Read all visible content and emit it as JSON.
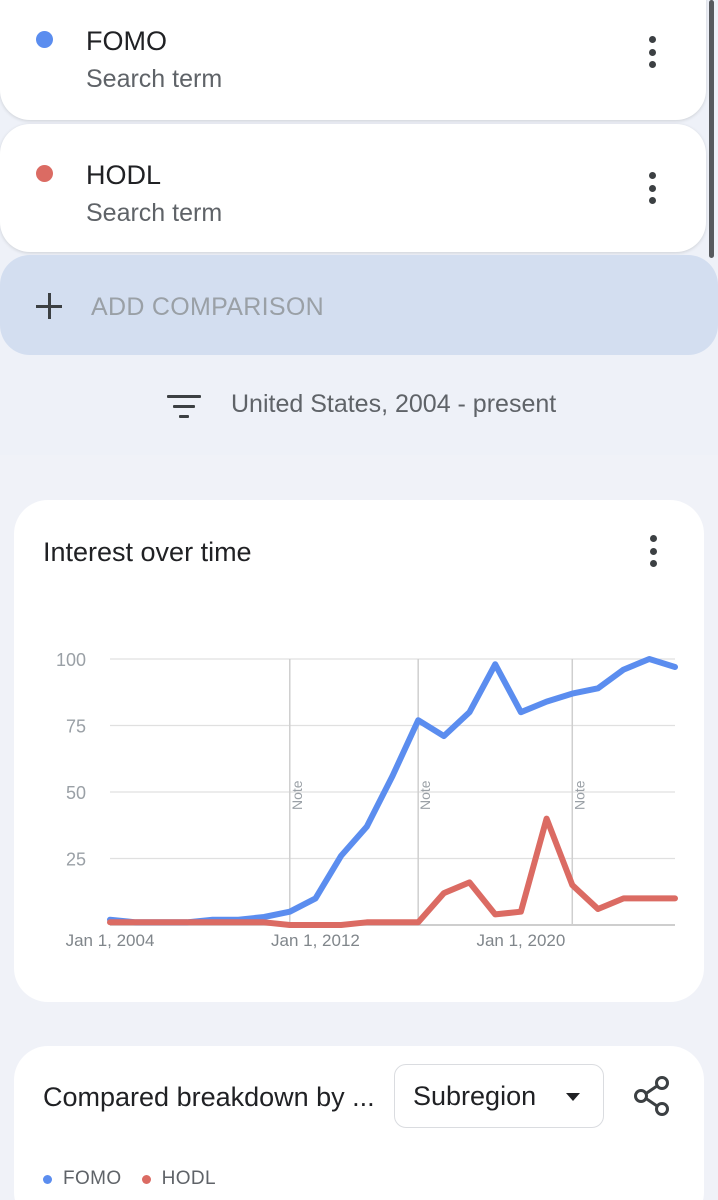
{
  "terms": [
    {
      "name": "FOMO",
      "type": "Search term",
      "color": "#5b8def"
    },
    {
      "name": "HODL",
      "type": "Search term",
      "color": "#db6b63"
    }
  ],
  "add_comparison": {
    "label": "ADD COMPARISON",
    "icon": "plus-icon"
  },
  "filter": {
    "label": "United States, 2004 - present",
    "icon": "filter-icon"
  },
  "interest_card": {
    "title": "Interest over time",
    "menu_icon": "more-vert-icon"
  },
  "chart_data": {
    "type": "line",
    "title": "Interest over time",
    "xlabel": "",
    "ylabel": "",
    "ylim": [
      0,
      100
    ],
    "x_range": [
      "Jan 1, 2004",
      "2026"
    ],
    "y_ticks": [
      "100",
      "75",
      "50",
      "25"
    ],
    "x_ticks": [
      {
        "label": "Jan 1, 2004",
        "x": 2004
      },
      {
        "label": "Jan 1, 2012",
        "x": 2012
      },
      {
        "label": "Jan 1, 2020",
        "x": 2020
      }
    ],
    "notes": [
      {
        "label": "Note",
        "x": 2011
      },
      {
        "label": "Note",
        "x": 2016
      },
      {
        "label": "Note",
        "x": 2022
      }
    ],
    "grid": true,
    "series": [
      {
        "name": "FOMO",
        "color": "#5b8def",
        "points": [
          [
            2004,
            2
          ],
          [
            2005,
            1
          ],
          [
            2006,
            1
          ],
          [
            2007,
            1
          ],
          [
            2008,
            2
          ],
          [
            2009,
            2
          ],
          [
            2010,
            3
          ],
          [
            2011,
            5
          ],
          [
            2012,
            10
          ],
          [
            2013,
            26
          ],
          [
            2014,
            37
          ],
          [
            2015,
            56
          ],
          [
            2016,
            77
          ],
          [
            2017,
            71
          ],
          [
            2018,
            80
          ],
          [
            2019,
            98
          ],
          [
            2020,
            80
          ],
          [
            2021,
            84
          ],
          [
            2022,
            87
          ],
          [
            2023,
            89
          ],
          [
            2024,
            96
          ],
          [
            2025,
            100
          ],
          [
            2026,
            97
          ]
        ]
      },
      {
        "name": "HODL",
        "color": "#db6b63",
        "points": [
          [
            2004,
            1
          ],
          [
            2005,
            1
          ],
          [
            2006,
            1
          ],
          [
            2007,
            1
          ],
          [
            2008,
            1
          ],
          [
            2009,
            1
          ],
          [
            2010,
            1
          ],
          [
            2011,
            0
          ],
          [
            2012,
            0
          ],
          [
            2013,
            0
          ],
          [
            2014,
            1
          ],
          [
            2015,
            1
          ],
          [
            2016,
            1
          ],
          [
            2017,
            12
          ],
          [
            2018,
            16
          ],
          [
            2019,
            4
          ],
          [
            2020,
            5
          ],
          [
            2021,
            40
          ],
          [
            2022,
            15
          ],
          [
            2023,
            6
          ],
          [
            2024,
            10
          ],
          [
            2025,
            10
          ],
          [
            2026,
            10
          ]
        ]
      }
    ]
  },
  "breakdown_card": {
    "title": "Compared breakdown by ...",
    "select_value": "Subregion",
    "share_icon": "share-icon",
    "legend": [
      {
        "name": "FOMO",
        "color": "#5b8def"
      },
      {
        "name": "HODL",
        "color": "#db6b63"
      }
    ]
  }
}
